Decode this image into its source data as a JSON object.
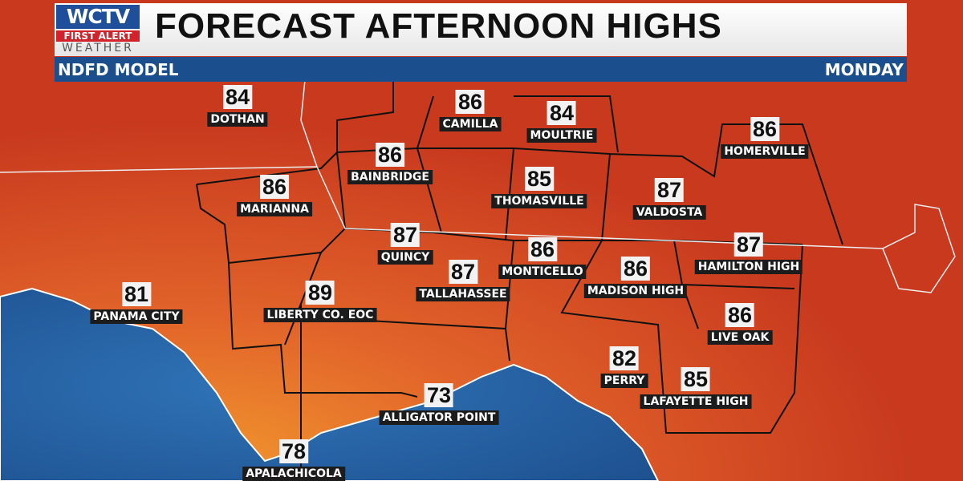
{
  "header": {
    "logo": {
      "line1": "WCTV",
      "line2": "FIRST ALERT",
      "line3": "WEATHER"
    },
    "title": "FORECAST AFTERNOON HIGHS",
    "model": "NDFD MODEL",
    "day": "MONDAY"
  },
  "colors": {
    "land_hot": "#c8391e",
    "land_warm": "#e8782a",
    "water": "#2d6fb4",
    "subbar": "#1a4e8c"
  },
  "stations": [
    {
      "name": "DOTHAN",
      "high": "84"
    },
    {
      "name": "CAMILLA",
      "high": "86"
    },
    {
      "name": "MOULTRIE",
      "high": "84"
    },
    {
      "name": "HOMERVILLE",
      "high": "86"
    },
    {
      "name": "BAINBRIDGE",
      "high": "86"
    },
    {
      "name": "MARIANNA",
      "high": "86"
    },
    {
      "name": "THOMASVILLE",
      "high": "85"
    },
    {
      "name": "VALDOSTA",
      "high": "87"
    },
    {
      "name": "QUINCY",
      "high": "87"
    },
    {
      "name": "HAMILTON HIGH",
      "high": "87"
    },
    {
      "name": "MONTICELLO",
      "high": "86"
    },
    {
      "name": "TALLAHASSEE",
      "high": "87"
    },
    {
      "name": "MADISON HIGH",
      "high": "86"
    },
    {
      "name": "PANAMA CITY",
      "high": "81"
    },
    {
      "name": "LIBERTY CO. EOC",
      "high": "89"
    },
    {
      "name": "LIVE OAK",
      "high": "86"
    },
    {
      "name": "PERRY",
      "high": "82"
    },
    {
      "name": "LAFAYETTE HIGH",
      "high": "85"
    },
    {
      "name": "ALLIGATOR POINT",
      "high": "73"
    },
    {
      "name": "APALACHICOLA",
      "high": "78"
    }
  ]
}
